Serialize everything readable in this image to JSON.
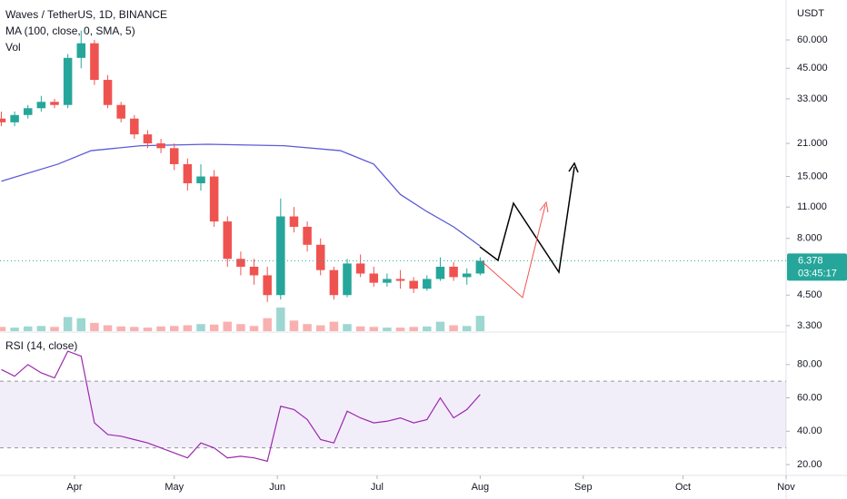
{
  "chart_data": [
    {
      "type": "candlestick",
      "title": "Waves / TetherUS, 1D, BINANCE",
      "unit_label": "USDT",
      "log_scale": true,
      "up_color": "#26a69a",
      "down_color": "#ef5350",
      "x": [
        -22,
        -18,
        -14,
        -10,
        -6,
        -2,
        2,
        6,
        10,
        14,
        18,
        22,
        26,
        30,
        34,
        38,
        42,
        46,
        50,
        54,
        58,
        62,
        66,
        70,
        74,
        78,
        82,
        86,
        90,
        94,
        98,
        102,
        106,
        110,
        114,
        118,
        122
      ],
      "open": [
        27,
        26,
        28,
        30,
        32,
        31,
        50,
        58,
        40,
        31,
        27,
        23,
        21,
        20,
        17,
        14,
        15,
        9.5,
        6.5,
        6,
        5.5,
        4.5,
        10,
        9,
        7.5,
        5.8,
        4.5,
        6.2,
        5.6,
        5.1,
        5.3,
        5.2,
        4.8,
        5.3,
        6,
        5.4,
        5.6
      ],
      "high": [
        29,
        29,
        31,
        34,
        33,
        52,
        66,
        60,
        42,
        32,
        28,
        24,
        22,
        21,
        18,
        17,
        16,
        10,
        7,
        6.5,
        6,
        12,
        11,
        9.5,
        8,
        6,
        6.5,
        6.8,
        6,
        5.6,
        5.8,
        5.4,
        5.5,
        6.6,
        6.3,
        5.9,
        6.6
      ],
      "low": [
        25,
        25,
        27,
        29,
        30,
        30,
        45,
        38,
        30,
        26,
        22,
        20,
        19,
        16,
        13,
        13,
        9,
        6,
        5.5,
        5,
        4.2,
        4.3,
        8.5,
        7,
        5.5,
        4.3,
        4.4,
        5.4,
        4.9,
        4.9,
        4.8,
        4.6,
        4.7,
        5.2,
        5.2,
        5,
        5.5
      ],
      "close": [
        26,
        28,
        30,
        32,
        31,
        50,
        58,
        40,
        31,
        27,
        23,
        21,
        20,
        17,
        14,
        15,
        9.5,
        6.5,
        6,
        5.5,
        4.5,
        10,
        9,
        7.5,
        5.8,
        4.5,
        6.2,
        5.6,
        5.1,
        5.3,
        5.2,
        4.8,
        5.3,
        6,
        5.4,
        5.6,
        6.378
      ],
      "volume_label": "Vol",
      "volume": [
        18,
        15,
        20,
        22,
        18,
        60,
        55,
        35,
        25,
        20,
        18,
        15,
        20,
        22,
        25,
        30,
        28,
        40,
        30,
        22,
        55,
        100,
        45,
        30,
        25,
        40,
        30,
        20,
        18,
        15,
        15,
        18,
        20,
        40,
        25,
        22,
        65
      ],
      "volume_ylim": [
        0,
        100
      ],
      "series": [
        {
          "name": "MA (100, close, 0, SMA, 5)",
          "color": "#5b5bd6",
          "x": [
            -22,
            -5,
            5,
            20,
            40,
            63,
            80,
            90,
            98,
            106,
            114,
            122
          ],
          "values": [
            14.3,
            17,
            19.5,
            20.5,
            20.8,
            20.5,
            19.5,
            17,
            12.5,
            10.5,
            9,
            7.4
          ]
        }
      ],
      "last_price": 6.378,
      "countdown": "03:45:17",
      "ylim": [
        3.12,
        90
      ],
      "yticks": [
        {
          "value": 3.3,
          "label": "3.300"
        },
        {
          "value": 4.5,
          "label": "4.500"
        },
        {
          "value": 8,
          "label": "8.000"
        },
        {
          "value": 11,
          "label": "11.000"
        },
        {
          "value": 15,
          "label": "15.000"
        },
        {
          "value": 21,
          "label": "21.000"
        },
        {
          "value": 33,
          "label": "33.000"
        },
        {
          "value": 45,
          "label": "45.000"
        },
        {
          "value": 60,
          "label": "60.000"
        }
      ],
      "xlim": [
        -22.4,
        214
      ],
      "xticks": [
        {
          "value": 0,
          "label": "Apr"
        },
        {
          "value": 30,
          "label": "May"
        },
        {
          "value": 61,
          "label": "Jun"
        },
        {
          "value": 91,
          "label": "Jul"
        },
        {
          "value": 122,
          "label": "Aug"
        },
        {
          "value": 153,
          "label": "Sep"
        },
        {
          "value": 183,
          "label": "Oct"
        },
        {
          "value": 214,
          "label": "Nov"
        }
      ]
    },
    {
      "type": "line",
      "band": [
        30,
        70
      ],
      "band_color": "#7e57c2",
      "series": [
        {
          "name": "RSI (14, close)",
          "color": "#9c27b0",
          "x": [
            -22,
            -18,
            -14,
            -10,
            -6,
            -2,
            2,
            6,
            10,
            14,
            18,
            22,
            26,
            30,
            34,
            38,
            42,
            46,
            50,
            54,
            58,
            62,
            66,
            70,
            74,
            78,
            82,
            86,
            90,
            94,
            98,
            102,
            106,
            110,
            114,
            118,
            122
          ],
          "values": [
            77,
            73,
            80,
            75,
            72,
            88,
            85,
            45,
            38,
            37,
            35,
            33,
            30,
            27,
            24,
            33,
            30,
            24,
            25,
            24,
            22,
            55,
            53,
            47,
            35,
            33,
            52,
            48,
            45,
            46,
            48,
            45,
            47,
            60,
            48,
            53,
            62
          ]
        }
      ],
      "ylim": [
        13.5,
        98.4
      ],
      "yticks": [
        {
          "value": 20,
          "label": "20.00"
        },
        {
          "value": 40,
          "label": "40.00"
        },
        {
          "value": 60,
          "label": "60.00"
        },
        {
          "value": 80,
          "label": "80.00"
        }
      ]
    }
  ]
}
